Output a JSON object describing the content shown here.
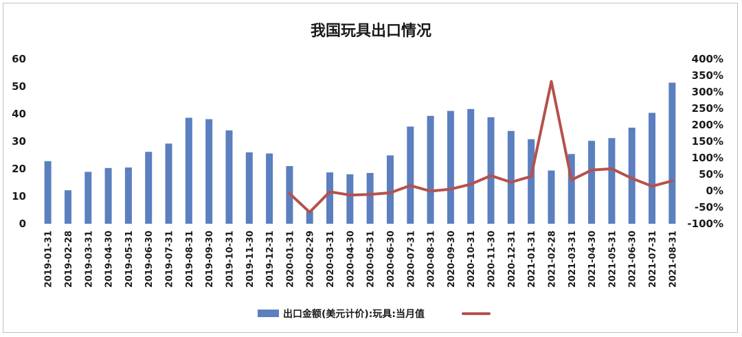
{
  "chart_data": {
    "type": "bar",
    "title": "我国玩具出口情况",
    "categories": [
      "2019-01-31",
      "2019-02-28",
      "2019-03-31",
      "2019-04-30",
      "2019-05-31",
      "2019-06-30",
      "2019-07-31",
      "2019-08-31",
      "2019-09-30",
      "2019-10-31",
      "2019-11-30",
      "2019-12-31",
      "2020-01-31",
      "2020-02-29",
      "2020-03-31",
      "2020-04-30",
      "2020-05-31",
      "2020-06-30",
      "2020-07-31",
      "2020-08-31",
      "2020-09-30",
      "2020-10-31",
      "2020-11-30",
      "2020-12-31",
      "2021-01-31",
      "2021-02-28",
      "2021-03-31",
      "2021-04-30",
      "2021-05-31",
      "2021-06-30",
      "2021-07-31",
      "2021-08-31"
    ],
    "series": [
      {
        "name": "出口金额(美元计价):玩具:当月值",
        "type": "bar",
        "axis": "left",
        "color": "#5b7fbf",
        "values": [
          22.8,
          12.2,
          18.9,
          20.3,
          20.5,
          26.2,
          29.2,
          38.6,
          38.1,
          34.0,
          26.0,
          25.6,
          21.0,
          4.5,
          18.7,
          18.0,
          18.5,
          24.9,
          35.4,
          39.3,
          41.1,
          41.8,
          38.8,
          33.8,
          30.8,
          19.4,
          25.4,
          30.2,
          31.2,
          35.0,
          40.4,
          51.4
        ]
      },
      {
        "name": "",
        "type": "line",
        "axis": "right",
        "color": "#b5514c",
        "values": [
          null,
          null,
          null,
          null,
          null,
          null,
          null,
          null,
          null,
          null,
          null,
          null,
          -8,
          -65,
          -3,
          -13,
          -11,
          -6,
          16,
          -1,
          5,
          20,
          46,
          26,
          44,
          332,
          33,
          63,
          67,
          38,
          14,
          30
        ]
      }
    ],
    "y_left": {
      "min": 0,
      "max": 60,
      "ticks": [
        "0",
        "10",
        "20",
        "30",
        "40",
        "50",
        "60"
      ]
    },
    "y_right": {
      "min": -100,
      "max": 400,
      "ticks": [
        "-100%",
        "-50%",
        "0%",
        "50%",
        "100%",
        "150%",
        "200%",
        "250%",
        "300%",
        "350%",
        "400%"
      ]
    },
    "legend_position": "bottom",
    "grid": false
  }
}
